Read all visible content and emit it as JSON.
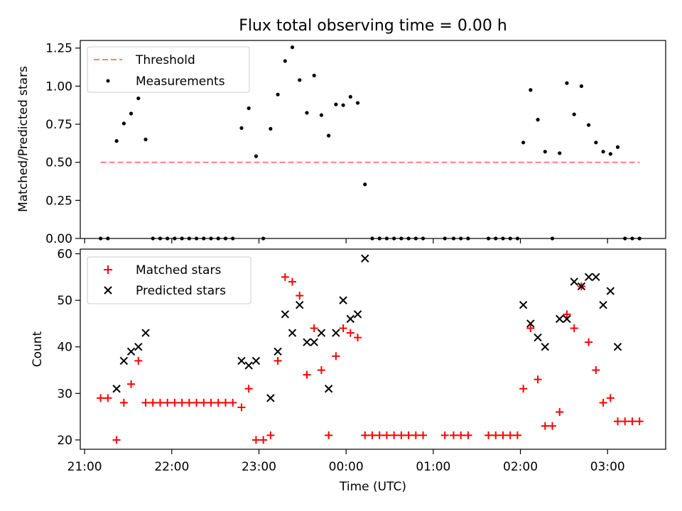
{
  "title": "Flux total observing time = 0.00 h",
  "chart_data": [
    {
      "type": "scatter",
      "ylabel": "Matched/Predicted stars",
      "ylim": [
        0,
        1.3
      ],
      "xlim": [
        "20:57",
        "03:40"
      ],
      "yticks": [
        "0.00",
        "0.25",
        "0.50",
        "0.75",
        "1.00",
        "1.25"
      ],
      "legend_position": "top-left",
      "grid": false,
      "threshold": {
        "name": "Threshold",
        "value": 0.5,
        "x": [
          "21:11",
          "03:22"
        ],
        "color": "#ff7f7f"
      },
      "series": [
        {
          "name": "Measurements",
          "color": "#000000",
          "points": [
            [
              "21:11",
              0
            ],
            [
              "21:16",
              0
            ],
            [
              "21:22",
              0.64
            ],
            [
              "21:27",
              0.755
            ],
            [
              "21:32",
              0.82
            ],
            [
              "21:37",
              0.92
            ],
            [
              "21:42",
              0.65
            ],
            [
              "21:47",
              0
            ],
            [
              "21:52",
              0
            ],
            [
              "21:57",
              0
            ],
            [
              "22:02",
              0
            ],
            [
              "22:07",
              0
            ],
            [
              "22:12",
              0
            ],
            [
              "22:17",
              0
            ],
            [
              "22:22",
              0
            ],
            [
              "22:27",
              0
            ],
            [
              "22:32",
              0
            ],
            [
              "22:37",
              0
            ],
            [
              "22:42",
              0
            ],
            [
              "22:48",
              0.725
            ],
            [
              "22:53",
              0.855
            ],
            [
              "22:58",
              0.54
            ],
            [
              "23:03",
              0
            ],
            [
              "23:08",
              0.72
            ],
            [
              "23:13",
              0.945
            ],
            [
              "23:18",
              1.165
            ],
            [
              "23:23",
              1.255
            ],
            [
              "23:28",
              1.04
            ],
            [
              "23:33",
              0.825
            ],
            [
              "23:38",
              1.07
            ],
            [
              "23:43",
              0.81
            ],
            [
              "23:48",
              0.675
            ],
            [
              "23:53",
              0.88
            ],
            [
              "23:58",
              0.875
            ],
            [
              "00:03",
              0.93
            ],
            [
              "00:08",
              0.89
            ],
            [
              "00:13",
              0.355
            ],
            [
              "00:18",
              0
            ],
            [
              "00:23",
              0
            ],
            [
              "00:28",
              0
            ],
            [
              "00:33",
              0
            ],
            [
              "00:38",
              0
            ],
            [
              "00:43",
              0
            ],
            [
              "00:48",
              0
            ],
            [
              "00:53",
              0
            ],
            [
              "01:08",
              0
            ],
            [
              "01:14",
              0
            ],
            [
              "01:19",
              0
            ],
            [
              "01:24",
              0
            ],
            [
              "01:38",
              0
            ],
            [
              "01:43",
              0
            ],
            [
              "01:48",
              0
            ],
            [
              "01:53",
              0
            ],
            [
              "01:58",
              0
            ],
            [
              "02:02",
              0.63
            ],
            [
              "02:07",
              0.975
            ],
            [
              "02:12",
              0.78
            ],
            [
              "02:17",
              0.57
            ],
            [
              "02:22",
              0
            ],
            [
              "02:27",
              0.56
            ],
            [
              "02:32",
              1.02
            ],
            [
              "02:37",
              0.815
            ],
            [
              "02:42",
              1.0
            ],
            [
              "02:47",
              0.745
            ],
            [
              "02:52",
              0.63
            ],
            [
              "02:57",
              0.57
            ],
            [
              "03:02",
              0.555
            ],
            [
              "03:07",
              0.6
            ],
            [
              "03:12",
              0
            ],
            [
              "03:17",
              0
            ],
            [
              "03:22",
              0
            ]
          ]
        }
      ]
    },
    {
      "type": "scatter",
      "xlabel": "Time (UTC)",
      "ylabel": "Count",
      "ylim": [
        18,
        61
      ],
      "xlim": [
        "20:57",
        "03:40"
      ],
      "xticks": [
        "21:00",
        "22:00",
        "23:00",
        "00:00",
        "01:00",
        "02:00",
        "03:00"
      ],
      "yticks": [
        "20",
        "30",
        "40",
        "50",
        "60"
      ],
      "legend_position": "top-left",
      "grid": false,
      "series": [
        {
          "name": "Matched stars",
          "marker": "+",
          "color": "#ff0000",
          "points": [
            [
              "21:11",
              29
            ],
            [
              "21:16",
              29
            ],
            [
              "21:22",
              20
            ],
            [
              "21:27",
              28
            ],
            [
              "21:32",
              32
            ],
            [
              "21:37",
              37
            ],
            [
              "21:42",
              28
            ],
            [
              "21:47",
              28
            ],
            [
              "21:52",
              28
            ],
            [
              "21:57",
              28
            ],
            [
              "22:02",
              28
            ],
            [
              "22:07",
              28
            ],
            [
              "22:12",
              28
            ],
            [
              "22:17",
              28
            ],
            [
              "22:22",
              28
            ],
            [
              "22:27",
              28
            ],
            [
              "22:32",
              28
            ],
            [
              "22:37",
              28
            ],
            [
              "22:42",
              28
            ],
            [
              "22:48",
              27
            ],
            [
              "22:53",
              31
            ],
            [
              "22:58",
              20
            ],
            [
              "23:03",
              20
            ],
            [
              "23:08",
              21
            ],
            [
              "23:13",
              37
            ],
            [
              "23:18",
              55
            ],
            [
              "23:23",
              54
            ],
            [
              "23:28",
              51
            ],
            [
              "23:33",
              34
            ],
            [
              "23:38",
              44
            ],
            [
              "23:43",
              35
            ],
            [
              "23:48",
              21
            ],
            [
              "23:53",
              38
            ],
            [
              "23:58",
              44
            ],
            [
              "00:03",
              43
            ],
            [
              "00:08",
              42
            ],
            [
              "00:13",
              21
            ],
            [
              "00:18",
              21
            ],
            [
              "00:23",
              21
            ],
            [
              "00:28",
              21
            ],
            [
              "00:33",
              21
            ],
            [
              "00:38",
              21
            ],
            [
              "00:43",
              21
            ],
            [
              "00:48",
              21
            ],
            [
              "00:53",
              21
            ],
            [
              "01:08",
              21
            ],
            [
              "01:14",
              21
            ],
            [
              "01:19",
              21
            ],
            [
              "01:24",
              21
            ],
            [
              "01:38",
              21
            ],
            [
              "01:43",
              21
            ],
            [
              "01:48",
              21
            ],
            [
              "01:53",
              21
            ],
            [
              "01:58",
              21
            ],
            [
              "02:02",
              31
            ],
            [
              "02:07",
              44
            ],
            [
              "02:12",
              33
            ],
            [
              "02:17",
              23
            ],
            [
              "02:22",
              23
            ],
            [
              "02:27",
              26
            ],
            [
              "02:32",
              47
            ],
            [
              "02:37",
              44
            ],
            [
              "02:42",
              53
            ],
            [
              "02:47",
              41
            ],
            [
              "02:52",
              35
            ],
            [
              "02:57",
              28
            ],
            [
              "03:02",
              29
            ],
            [
              "03:07",
              24
            ],
            [
              "03:12",
              24
            ],
            [
              "03:17",
              24
            ],
            [
              "03:22",
              24
            ]
          ]
        },
        {
          "name": "Predicted stars",
          "marker": "x",
          "color": "#000000",
          "points": [
            [
              "21:22",
              31
            ],
            [
              "21:27",
              37
            ],
            [
              "21:32",
              39
            ],
            [
              "21:37",
              40
            ],
            [
              "21:42",
              43
            ],
            [
              "22:48",
              37
            ],
            [
              "22:53",
              36
            ],
            [
              "22:58",
              37
            ],
            [
              "23:08",
              29
            ],
            [
              "23:13",
              39
            ],
            [
              "23:18",
              47
            ],
            [
              "23:23",
              43
            ],
            [
              "23:28",
              49
            ],
            [
              "23:33",
              41
            ],
            [
              "23:38",
              41
            ],
            [
              "23:43",
              43
            ],
            [
              "23:48",
              31
            ],
            [
              "23:53",
              43
            ],
            [
              "23:58",
              50
            ],
            [
              "00:03",
              46
            ],
            [
              "00:08",
              47
            ],
            [
              "00:13",
              59
            ],
            [
              "02:02",
              49
            ],
            [
              "02:07",
              45
            ],
            [
              "02:12",
              42
            ],
            [
              "02:17",
              40
            ],
            [
              "02:27",
              46
            ],
            [
              "02:32",
              46
            ],
            [
              "02:37",
              54
            ],
            [
              "02:42",
              53
            ],
            [
              "02:47",
              55
            ],
            [
              "02:52",
              55
            ],
            [
              "02:57",
              49
            ],
            [
              "03:02",
              52
            ],
            [
              "03:07",
              40
            ]
          ]
        }
      ]
    }
  ]
}
